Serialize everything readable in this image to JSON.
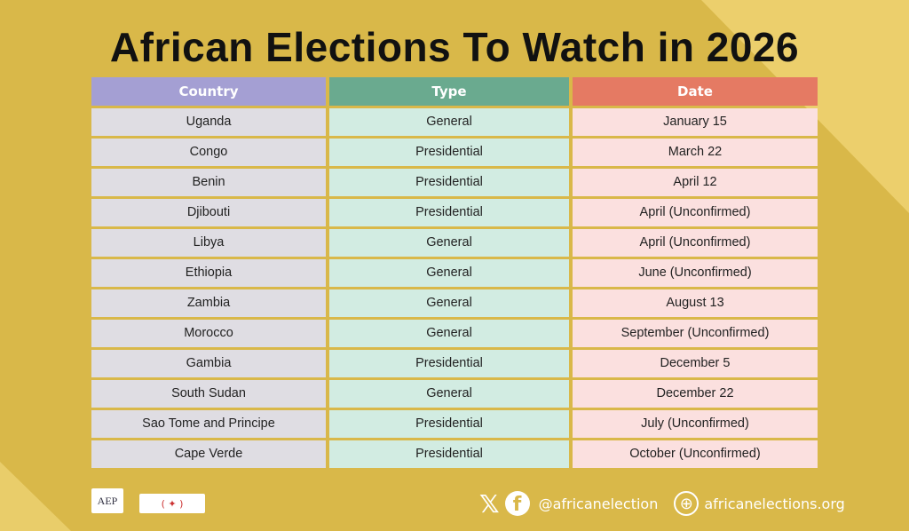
{
  "title": "African Elections To Watch in 2026",
  "headers": {
    "country": "Country",
    "type": "Type",
    "date": "Date"
  },
  "rows": [
    {
      "country": "Uganda",
      "type": "General",
      "date": "January 15"
    },
    {
      "country": "Congo",
      "type": "Presidential",
      "date": "March 22"
    },
    {
      "country": "Benin",
      "type": "Presidential",
      "date": "April 12"
    },
    {
      "country": "Djibouti",
      "type": "Presidential",
      "date": "April (Unconfirmed)"
    },
    {
      "country": "Libya",
      "type": "General",
      "date": "April (Unconfirmed)"
    },
    {
      "country": "Ethiopia",
      "type": "General",
      "date": "June (Unconfirmed)"
    },
    {
      "country": "Zambia",
      "type": "General",
      "date": "August 13"
    },
    {
      "country": "Morocco",
      "type": "General",
      "date": "September (Unconfirmed)"
    },
    {
      "country": "Gambia",
      "type": "Presidential",
      "date": "December 5"
    },
    {
      "country": "South Sudan",
      "type": "General",
      "date": "December 22"
    },
    {
      "country": "Sao Tome and Principe",
      "type": "Presidential",
      "date": "July (Unconfirmed)"
    },
    {
      "country": "Cape Verde",
      "type": "Presidential",
      "date": "October (Unconfirmed)"
    }
  ],
  "footer": {
    "logo1": "AEP",
    "social_handle": "@africanelection",
    "website": "africanelections.org"
  },
  "colors": {
    "country_header": "#a49fd3",
    "type_header": "#6aaa8f",
    "date_header": "#e57a63"
  }
}
